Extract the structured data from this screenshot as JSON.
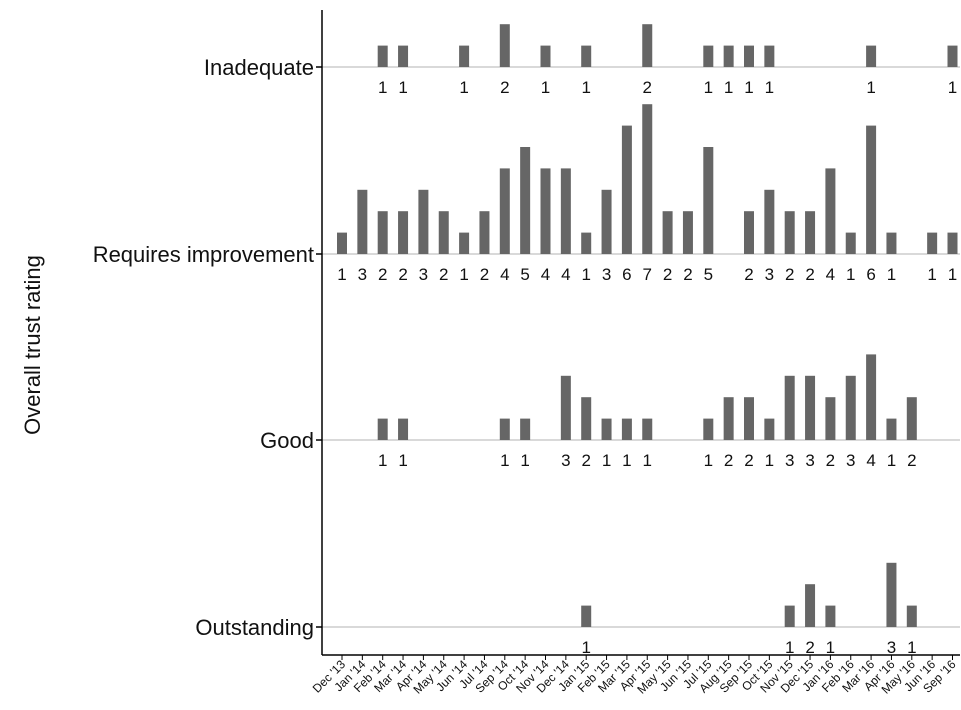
{
  "chart_data": {
    "type": "bar",
    "ylabel": "Overall trust rating",
    "xlabel": "",
    "categories": [
      "Dec '13",
      "Jan '14",
      "Feb '14",
      "Mar '14",
      "Apr '14",
      "May '14",
      "Jun '14",
      "Jul '14",
      "Sep '14",
      "Oct '14",
      "Nov '14",
      "Dec '14",
      "Jan '15",
      "Feb '15",
      "Mar '15",
      "Apr '15",
      "May '15",
      "Jun '15",
      "Jul '15",
      "Aug '15",
      "Sep '15",
      "Oct '15",
      "Nov '15",
      "Dec '15",
      "Jan '16",
      "Feb '16",
      "Mar '16",
      "Apr '16",
      "May '16",
      "Jun '16",
      "Sep '16"
    ],
    "series": [
      {
        "name": "Inadequate",
        "values": [
          0,
          0,
          1,
          1,
          0,
          0,
          1,
          0,
          2,
          0,
          1,
          0,
          1,
          0,
          0,
          2,
          0,
          0,
          1,
          1,
          1,
          1,
          0,
          0,
          0,
          0,
          1,
          0,
          0,
          0,
          1
        ]
      },
      {
        "name": "Requires improvement",
        "values": [
          1,
          3,
          2,
          2,
          3,
          2,
          1,
          2,
          4,
          5,
          4,
          4,
          1,
          3,
          6,
          7,
          2,
          2,
          5,
          0,
          2,
          3,
          2,
          2,
          4,
          1,
          6,
          1,
          0,
          1,
          1
        ]
      },
      {
        "name": "Good",
        "values": [
          0,
          0,
          1,
          1,
          0,
          0,
          0,
          0,
          1,
          1,
          0,
          3,
          2,
          1,
          1,
          1,
          0,
          0,
          1,
          2,
          2,
          1,
          3,
          3,
          2,
          3,
          4,
          1,
          2,
          0,
          0
        ]
      },
      {
        "name": "Outstanding",
        "values": [
          0,
          0,
          0,
          0,
          0,
          0,
          0,
          0,
          0,
          0,
          0,
          0,
          1,
          0,
          0,
          0,
          0,
          0,
          0,
          0,
          0,
          0,
          1,
          2,
          1,
          0,
          0,
          3,
          1,
          0,
          0
        ]
      }
    ],
    "grid": false,
    "legend": "none",
    "colors": {
      "bar": "#666666",
      "baseline": "#d9d9d9",
      "axis": "#000000",
      "text": "#111111"
    }
  }
}
